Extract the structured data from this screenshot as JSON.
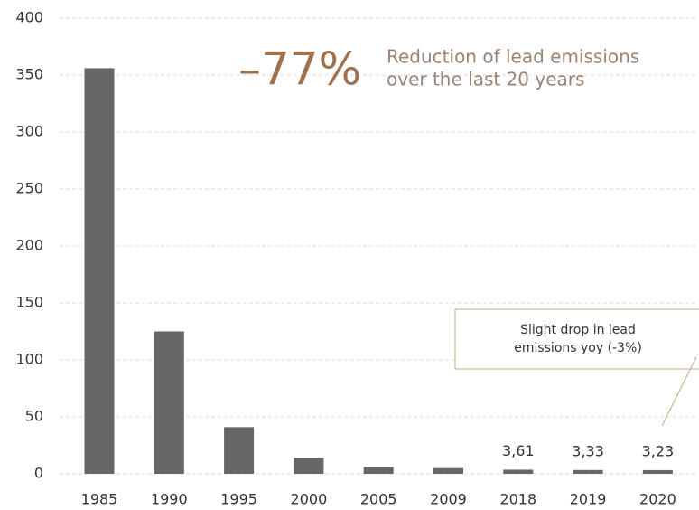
{
  "chart_data": {
    "type": "bar",
    "categories": [
      "1985",
      "1990",
      "1995",
      "2000",
      "2005",
      "2009",
      "2018",
      "2019",
      "2020"
    ],
    "values": [
      356,
      125,
      41,
      14,
      6,
      5,
      3.61,
      3.33,
      3.23
    ],
    "value_labels": [
      null,
      null,
      null,
      null,
      null,
      null,
      "3,61",
      "3,33",
      "3,23"
    ],
    "color": "#666666",
    "ylim": [
      0,
      400
    ],
    "yticks": [
      0,
      50,
      100,
      150,
      200,
      250,
      300,
      350,
      400
    ],
    "grid": true,
    "annotation": {
      "value": "–77%",
      "text": [
        "Reduction of lead emissions",
        "over the last 20 years"
      ],
      "color": "#a0714f"
    },
    "callout": [
      "Slight drop in lead",
      "emissions yoy (-3%)"
    ]
  }
}
